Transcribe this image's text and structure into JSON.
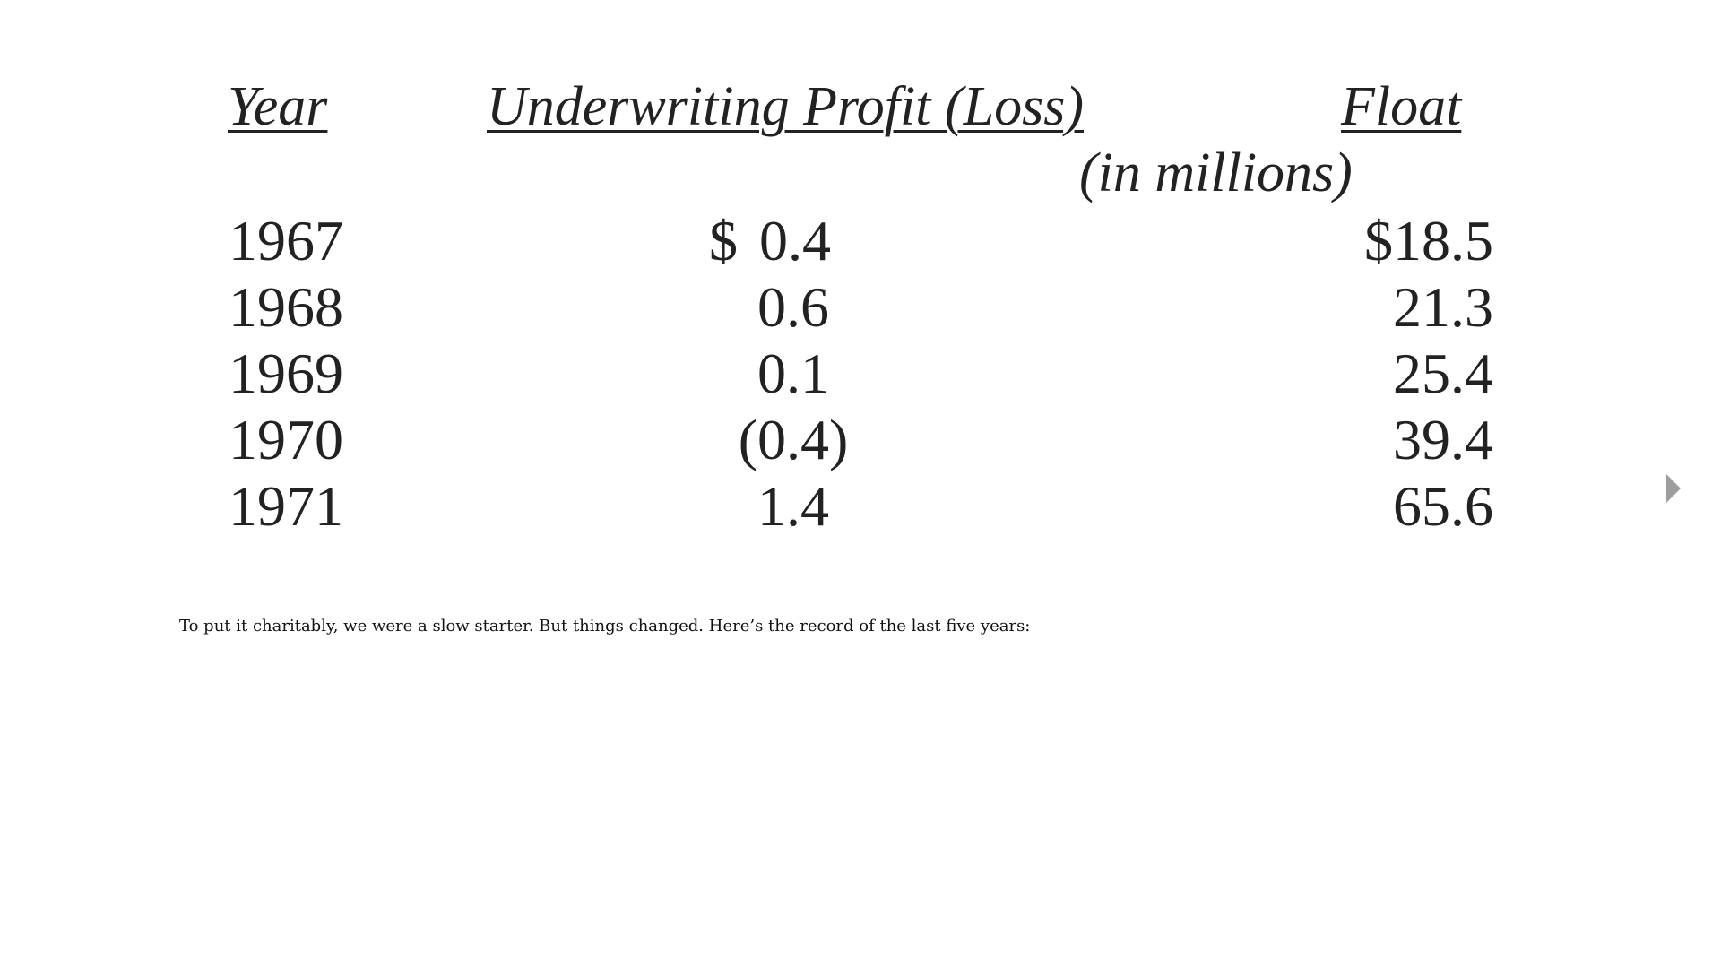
{
  "table": {
    "headers": {
      "year": "Year",
      "underwriting": "Underwriting Profit (Loss)",
      "float": "Float"
    },
    "units": "(in millions)",
    "rows": [
      {
        "year": "1967",
        "underwriting_prefix": "$",
        "underwriting": "0.4",
        "float": "$18.5"
      },
      {
        "year": "1968",
        "underwriting": "0.6",
        "float": "21.3"
      },
      {
        "year": "1969",
        "underwriting": "0.1",
        "float": "25.4"
      },
      {
        "year": "1970",
        "underwriting": "(0.4)",
        "float": "39.4"
      },
      {
        "year": "1971",
        "underwriting": "1.4",
        "float": "65.6"
      }
    ]
  },
  "body": {
    "paragraph": "To put it charitably, we were a slow starter. But things changed. Here’s the record of the last five years:"
  },
  "navigation": {
    "next_icon": "triangle-right-icon",
    "icon_color": "#9e9e9e"
  },
  "colors": {
    "background": "#ffffff",
    "text": "#111111"
  }
}
